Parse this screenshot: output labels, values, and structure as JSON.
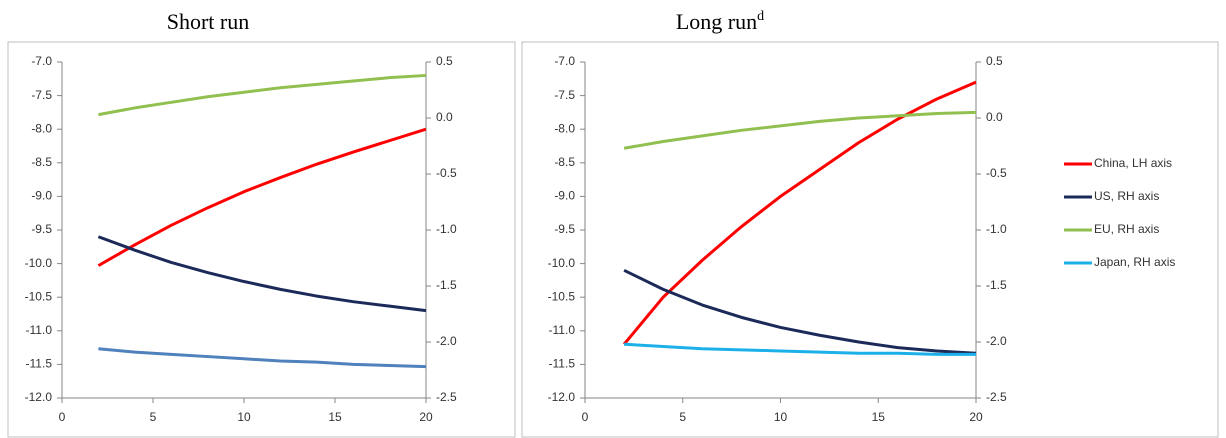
{
  "chart_data": [
    {
      "type": "line",
      "title": "Short run",
      "x": [
        2,
        4,
        6,
        8,
        10,
        12,
        14,
        16,
        18,
        20
      ],
      "series": [
        {
          "color": "#ff0000",
          "values": [
            -10.03,
            -9.72,
            -9.43,
            -9.17,
            -8.93,
            -8.72,
            -8.52,
            -8.34,
            -8.17,
            -8.0
          ]
        },
        {
          "color": "#1c2a5a",
          "axis": "y2",
          "values": [
            -1.06,
            -1.18,
            -1.29,
            -1.38,
            -1.46,
            -1.53,
            -1.59,
            -1.64,
            -1.68,
            -1.72
          ]
        },
        {
          "color": "#92c050",
          "axis": "y2",
          "values": [
            0.03,
            0.09,
            0.14,
            0.19,
            0.23,
            0.27,
            0.3,
            0.33,
            0.36,
            0.38
          ]
        },
        {
          "color": "#4f81bd",
          "axis": "y2",
          "values": [
            -2.06,
            -2.09,
            -2.11,
            -2.13,
            -2.15,
            -2.17,
            -2.18,
            -2.2,
            -2.21,
            -2.22
          ]
        }
      ],
      "xlim": [
        0,
        20
      ],
      "xticks": [
        0,
        5,
        10,
        15,
        20
      ],
      "ylim": [
        -12,
        -7
      ],
      "yticks": [
        {
          "value": -7,
          "label": "-7.0"
        },
        -7.5,
        {
          "value": -8,
          "label": "-8.0"
        },
        -8.5,
        {
          "value": -9,
          "label": "-9.0"
        },
        -9.5,
        {
          "value": -10,
          "label": "-10.0"
        },
        -10.5,
        {
          "value": -11,
          "label": "-11.0"
        },
        -11.5,
        {
          "value": -12,
          "label": "-12.0"
        }
      ],
      "y2lim": [
        -2.5,
        0.5
      ],
      "y2ticks": [
        0.5,
        {
          "value": 0,
          "label": "0.0"
        },
        -0.5,
        {
          "value": -1,
          "label": "-1.0"
        },
        -1.5,
        {
          "value": -2,
          "label": "-2.0"
        },
        -2.5
      ],
      "grid": false
    },
    {
      "type": "line",
      "title": "Long run",
      "title_superscript": "d",
      "x": [
        2,
        4,
        6,
        8,
        10,
        12,
        14,
        16,
        18,
        20
      ],
      "series": [
        {
          "name": "China, LH axis",
          "color": "#ff0000",
          "values": [
            -11.2,
            -10.5,
            -9.95,
            -9.45,
            -9.0,
            -8.6,
            -8.2,
            -7.85,
            -7.55,
            -7.3
          ]
        },
        {
          "name": "US, RH axis",
          "color": "#1c2a5a",
          "axis": "y2",
          "values": [
            -1.36,
            -1.53,
            -1.67,
            -1.78,
            -1.87,
            -1.94,
            -2.0,
            -2.05,
            -2.08,
            -2.1
          ]
        },
        {
          "name": "EU, RH axis",
          "color": "#92c050",
          "axis": "y2",
          "values": [
            -0.27,
            -0.21,
            -0.16,
            -0.11,
            -0.07,
            -0.03,
            -0.0,
            0.02,
            0.04,
            0.05
          ]
        },
        {
          "name": "Japan, RH axis",
          "color": "#1cb0e8",
          "axis": "y2",
          "values": [
            -2.02,
            -2.04,
            -2.06,
            -2.07,
            -2.08,
            -2.09,
            -2.1,
            -2.1,
            -2.11,
            -2.11
          ]
        }
      ],
      "xlim": [
        0,
        20
      ],
      "xticks": [
        0,
        5,
        10,
        15,
        20
      ],
      "ylim": [
        -12,
        -7
      ],
      "yticks": [
        {
          "value": -7,
          "label": "-7.0"
        },
        -7.5,
        {
          "value": -8,
          "label": "-8.0"
        },
        -8.5,
        {
          "value": -9,
          "label": "-9.0"
        },
        -9.5,
        {
          "value": -10,
          "label": "-10.0"
        },
        -10.5,
        {
          "value": -11,
          "label": "-11.0"
        },
        -11.5,
        {
          "value": -12,
          "label": "-12.0"
        }
      ],
      "y2lim": [
        -2.5,
        0.5
      ],
      "y2ticks": [
        0.5,
        {
          "value": 0,
          "label": "0.0"
        },
        -0.5,
        {
          "value": -1,
          "label": "-1.0"
        },
        -1.5,
        {
          "value": -2,
          "label": "-2.0"
        },
        -2.5
      ],
      "grid": false,
      "legend": "right"
    }
  ]
}
